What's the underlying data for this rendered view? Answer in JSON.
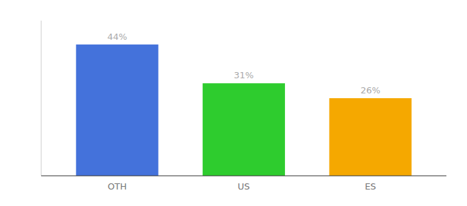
{
  "chart_data": {
    "type": "bar",
    "categories": [
      "OTH",
      "US",
      "ES"
    ],
    "values": [
      44,
      31,
      26
    ],
    "colors": [
      "#4472db",
      "#2ecc2e",
      "#f5a800"
    ],
    "ylim": [
      0,
      52
    ],
    "yticks": [],
    "grid": false,
    "data_labels": true,
    "value_labels": [
      "44%",
      "31%",
      "26%"
    ],
    "tick_labels": "x"
  }
}
